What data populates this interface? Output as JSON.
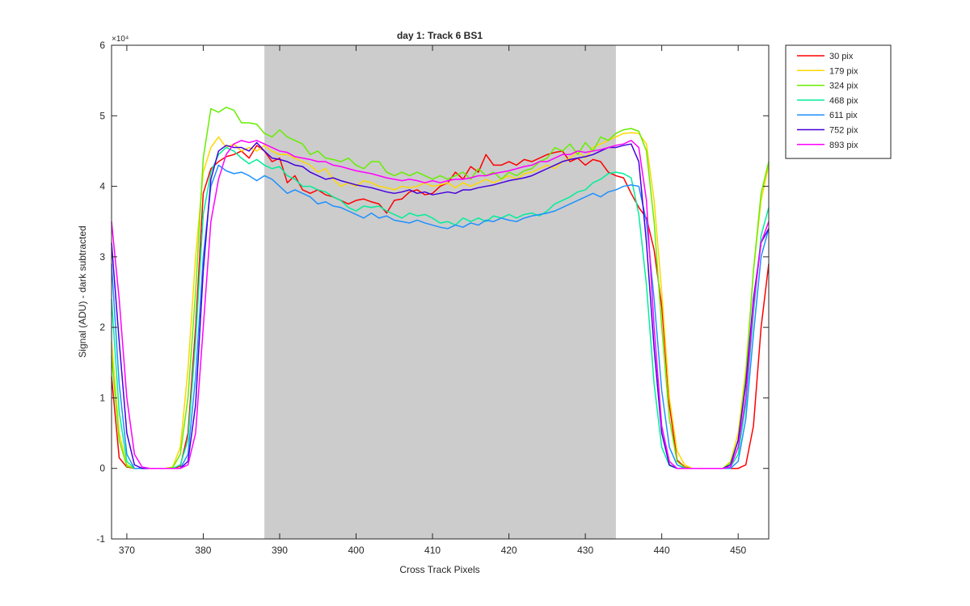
{
  "chart_data": {
    "type": "line",
    "title": "day 1: Track 6  BS1",
    "xlabel": "Cross Track Pixels",
    "ylabel": "Signal (ADU) - dark subtracted",
    "y_exponent_label": "×10⁴",
    "xlim": [
      368,
      454
    ],
    "ylim": [
      -1,
      6
    ],
    "y_scale_factor": 10000,
    "x_ticks": [
      370,
      380,
      390,
      400,
      410,
      420,
      430,
      440,
      450
    ],
    "y_ticks": [
      -1,
      0,
      1,
      2,
      3,
      4,
      5,
      6
    ],
    "grid": false,
    "legend_position": "outside-top-right",
    "shaded_region": {
      "x": [
        388,
        434
      ],
      "color": "#cccccc"
    },
    "x": [
      368,
      369,
      370,
      371,
      372,
      373,
      374,
      375,
      376,
      377,
      378,
      379,
      380,
      381,
      382,
      383,
      384,
      385,
      386,
      387,
      388,
      389,
      390,
      391,
      392,
      393,
      394,
      395,
      396,
      397,
      398,
      399,
      400,
      401,
      402,
      403,
      404,
      405,
      406,
      407,
      408,
      409,
      410,
      411,
      412,
      413,
      414,
      415,
      416,
      417,
      418,
      419,
      420,
      421,
      422,
      423,
      424,
      425,
      426,
      427,
      428,
      429,
      430,
      431,
      432,
      433,
      434,
      435,
      436,
      437,
      438,
      439,
      440,
      441,
      442,
      443,
      444,
      445,
      446,
      447,
      448,
      449,
      450,
      451,
      452,
      453,
      454
    ],
    "series": [
      {
        "name": "30 pix",
        "color": "#ff0000",
        "values": [
          1.3,
          0.15,
          0.02,
          0,
          0,
          0,
          0,
          0,
          0,
          0.03,
          0.5,
          2.0,
          3.9,
          4.25,
          4.35,
          4.42,
          4.45,
          4.5,
          4.4,
          4.58,
          4.5,
          4.35,
          4.4,
          4.05,
          4.15,
          3.95,
          3.9,
          3.95,
          3.88,
          3.85,
          3.8,
          3.75,
          3.8,
          3.82,
          3.78,
          3.75,
          3.62,
          3.8,
          3.82,
          3.92,
          3.95,
          3.88,
          3.9,
          4.0,
          4.05,
          4.2,
          4.1,
          4.28,
          4.2,
          4.45,
          4.3,
          4.3,
          4.35,
          4.3,
          4.38,
          4.35,
          4.4,
          4.45,
          4.48,
          4.5,
          4.35,
          4.4,
          4.3,
          4.38,
          4.35,
          4.2,
          4.15,
          4.12,
          3.9,
          3.7,
          3.55,
          3.1,
          2.3,
          0.9,
          0.12,
          0.02,
          0,
          0,
          0,
          0,
          0,
          0,
          0,
          0.05,
          0.6,
          2.0,
          2.9
        ]
      },
      {
        "name": "179 pix",
        "color": "#ffd700",
        "values": [
          1.8,
          0.5,
          0.05,
          0,
          0,
          0,
          0,
          0,
          0.02,
          0.3,
          1.4,
          3.0,
          4.2,
          4.55,
          4.7,
          4.55,
          4.6,
          4.5,
          4.55,
          4.5,
          4.58,
          4.5,
          4.45,
          4.45,
          4.4,
          4.35,
          4.3,
          4.2,
          4.25,
          4.1,
          4.0,
          4.05,
          4.0,
          4.08,
          4.05,
          4.0,
          3.98,
          3.95,
          4.0,
          3.98,
          4.0,
          4.05,
          4.0,
          4.02,
          4.05,
          3.98,
          4.05,
          4.0,
          4.05,
          4.1,
          4.05,
          4.1,
          4.15,
          4.1,
          4.18,
          4.2,
          4.25,
          4.3,
          4.25,
          4.35,
          4.4,
          4.5,
          4.4,
          4.55,
          4.6,
          4.65,
          4.7,
          4.75,
          4.76,
          4.75,
          4.6,
          3.8,
          2.5,
          1.0,
          0.25,
          0.05,
          0,
          0,
          0,
          0,
          0,
          0.1,
          0.5,
          1.4,
          2.8,
          3.8,
          4.3
        ]
      },
      {
        "name": "324 pix",
        "color": "#66ee00",
        "values": [
          1.6,
          0.4,
          0.03,
          0,
          0,
          0,
          0,
          0,
          0.01,
          0.2,
          1.0,
          2.5,
          4.4,
          5.1,
          5.05,
          5.12,
          5.08,
          4.9,
          4.9,
          4.88,
          4.75,
          4.7,
          4.8,
          4.7,
          4.65,
          4.6,
          4.45,
          4.5,
          4.4,
          4.38,
          4.35,
          4.4,
          4.3,
          4.25,
          4.35,
          4.35,
          4.2,
          4.15,
          4.2,
          4.15,
          4.2,
          4.15,
          4.1,
          4.15,
          4.1,
          4.15,
          4.2,
          4.1,
          4.25,
          4.15,
          4.2,
          4.1,
          4.2,
          4.15,
          4.22,
          4.25,
          4.35,
          4.4,
          4.55,
          4.5,
          4.6,
          4.45,
          4.62,
          4.5,
          4.7,
          4.65,
          4.75,
          4.8,
          4.82,
          4.78,
          4.5,
          3.5,
          2.0,
          0.7,
          0.1,
          0.01,
          0,
          0,
          0,
          0,
          0,
          0.08,
          0.4,
          1.3,
          2.8,
          3.9,
          4.35
        ]
      },
      {
        "name": "468 pix",
        "color": "#00ee99",
        "values": [
          2.4,
          0.8,
          0.1,
          0,
          0,
          0,
          0,
          0,
          0,
          0.05,
          0.4,
          1.8,
          3.6,
          4.2,
          4.45,
          4.55,
          4.5,
          4.4,
          4.32,
          4.38,
          4.3,
          4.25,
          4.28,
          4.15,
          4.1,
          4.0,
          4.0,
          3.95,
          3.92,
          3.85,
          3.8,
          3.7,
          3.65,
          3.72,
          3.7,
          3.72,
          3.65,
          3.6,
          3.55,
          3.62,
          3.58,
          3.6,
          3.55,
          3.48,
          3.5,
          3.45,
          3.55,
          3.5,
          3.55,
          3.5,
          3.58,
          3.55,
          3.6,
          3.55,
          3.6,
          3.62,
          3.58,
          3.65,
          3.75,
          3.8,
          3.85,
          3.92,
          3.95,
          4.05,
          4.1,
          4.18,
          4.2,
          4.18,
          4.12,
          3.6,
          2.6,
          1.2,
          0.3,
          0.04,
          0,
          0,
          0,
          0,
          0,
          0,
          0,
          0.02,
          0.2,
          0.9,
          2.2,
          3.3,
          3.7
        ]
      },
      {
        "name": "611 pix",
        "color": "#1e90ff",
        "values": [
          2.9,
          1.2,
          0.2,
          0,
          0,
          0,
          0,
          0,
          0,
          0,
          0.2,
          1.3,
          3.0,
          4.0,
          4.3,
          4.22,
          4.18,
          4.2,
          4.15,
          4.08,
          4.15,
          4.1,
          4.0,
          3.9,
          3.95,
          3.9,
          3.85,
          3.75,
          3.78,
          3.72,
          3.7,
          3.65,
          3.6,
          3.55,
          3.62,
          3.55,
          3.58,
          3.52,
          3.5,
          3.48,
          3.52,
          3.48,
          3.45,
          3.42,
          3.4,
          3.45,
          3.42,
          3.48,
          3.45,
          3.52,
          3.5,
          3.55,
          3.52,
          3.5,
          3.55,
          3.58,
          3.6,
          3.62,
          3.65,
          3.7,
          3.75,
          3.8,
          3.85,
          3.9,
          3.85,
          3.92,
          3.95,
          4.0,
          4.02,
          4.0,
          3.5,
          2.4,
          1.1,
          0.3,
          0.05,
          0,
          0,
          0,
          0,
          0,
          0,
          0,
          0.1,
          0.7,
          1.9,
          3.0,
          3.4
        ]
      },
      {
        "name": "752 pix",
        "color": "#4400dd",
        "values": [
          3.2,
          1.8,
          0.5,
          0.05,
          0,
          0,
          0,
          0,
          0,
          0,
          0.1,
          0.9,
          2.8,
          4.1,
          4.5,
          4.58,
          4.55,
          4.55,
          4.5,
          4.62,
          4.5,
          4.4,
          4.38,
          4.35,
          4.3,
          4.28,
          4.2,
          4.15,
          4.1,
          4.12,
          4.08,
          4.05,
          4.02,
          4.0,
          3.98,
          3.95,
          3.92,
          3.9,
          3.92,
          3.95,
          3.9,
          3.92,
          3.88,
          3.9,
          3.92,
          3.9,
          3.95,
          3.95,
          3.98,
          4.0,
          4.02,
          4.05,
          4.08,
          4.1,
          4.12,
          4.15,
          4.2,
          4.25,
          4.3,
          4.35,
          4.38,
          4.4,
          4.42,
          4.45,
          4.5,
          4.55,
          4.55,
          4.58,
          4.6,
          4.35,
          3.2,
          1.7,
          0.5,
          0.05,
          0,
          0,
          0,
          0,
          0,
          0,
          0,
          0.05,
          0.4,
          1.2,
          2.4,
          3.2,
          3.4
        ]
      },
      {
        "name": "893 pix",
        "color": "#ff00ff",
        "values": [
          3.5,
          2.4,
          1.0,
          0.2,
          0.02,
          0,
          0,
          0,
          0,
          0,
          0.05,
          0.5,
          2.0,
          3.5,
          4.1,
          4.45,
          4.6,
          4.65,
          4.62,
          4.65,
          4.6,
          4.55,
          4.5,
          4.48,
          4.42,
          4.4,
          4.38,
          4.35,
          4.35,
          4.3,
          4.28,
          4.25,
          4.22,
          4.2,
          4.18,
          4.15,
          4.12,
          4.1,
          4.08,
          4.1,
          4.08,
          4.05,
          4.08,
          4.05,
          4.08,
          4.1,
          4.1,
          4.12,
          4.15,
          4.15,
          4.18,
          4.2,
          4.22,
          4.25,
          4.28,
          4.3,
          4.35,
          4.35,
          4.4,
          4.45,
          4.45,
          4.5,
          4.48,
          4.5,
          4.52,
          4.55,
          4.58,
          4.6,
          4.65,
          4.55,
          3.8,
          2.0,
          0.6,
          0.1,
          0,
          0,
          0,
          0,
          0,
          0,
          0,
          0.02,
          0.3,
          1.0,
          2.3,
          3.2,
          3.5
        ]
      }
    ]
  }
}
